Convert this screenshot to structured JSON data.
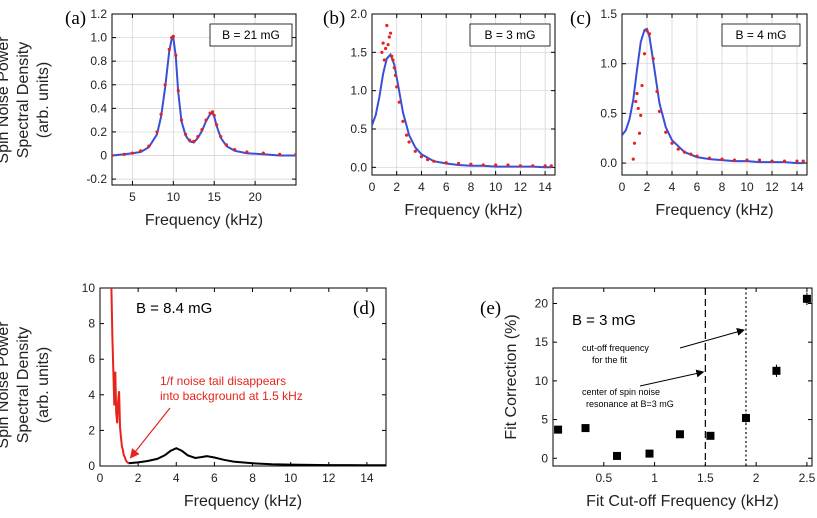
{
  "shared": {
    "ylabel_lines": [
      "Spin Noise Power",
      "Spectral Density",
      "(arb. units)"
    ],
    "xlabel": "Frequency (kHz)"
  },
  "colors": {
    "data": "#e8231c",
    "fit": "#3a4fd8",
    "trace": "#000000",
    "tail": "#e8231c",
    "grid": "#d0d0d0"
  },
  "chart_data": [
    {
      "id": "a",
      "panel_label": "(a)",
      "type": "scatter+line",
      "legend": "B = 21 mG",
      "xlabel": "Frequency (kHz)",
      "ylabel": "Spin Noise Power Spectral Density (arb. units)",
      "xlim": [
        2.5,
        25
      ],
      "ylim": [
        -0.25,
        1.2
      ],
      "xticks": [
        5,
        10,
        15,
        20
      ],
      "yticks": [
        -0.2,
        0,
        0.2,
        0.4,
        0.6,
        0.8,
        1.0,
        1.2
      ],
      "ytick_labels": [
        "-0.2",
        "0",
        "0.2",
        "0.4",
        "0.6",
        "0.8",
        "1.0",
        "1.2"
      ],
      "grid": true,
      "series": [
        {
          "kind": "data-points",
          "x": [
            2.5,
            4,
            5,
            6,
            7,
            8,
            8.5,
            9,
            9.5,
            9.8,
            10,
            10.3,
            10.6,
            11,
            11.5,
            12,
            12.5,
            13,
            13.5,
            14,
            14.5,
            14.8,
            15,
            15.3,
            15.8,
            16.5,
            17.5,
            19,
            21,
            23,
            25
          ],
          "y": [
            0.0,
            0.01,
            0.02,
            0.04,
            0.08,
            0.2,
            0.35,
            0.6,
            0.9,
            1.0,
            1.01,
            0.85,
            0.55,
            0.3,
            0.18,
            0.13,
            0.12,
            0.16,
            0.22,
            0.3,
            0.36,
            0.37,
            0.34,
            0.26,
            0.16,
            0.09,
            0.05,
            0.03,
            0.02,
            0.01,
            0.01
          ]
        },
        {
          "kind": "fit-curve",
          "x": [
            2.5,
            4,
            5,
            6,
            7,
            8,
            8.5,
            9,
            9.5,
            9.8,
            10,
            10.3,
            10.6,
            11,
            11.5,
            12,
            12.5,
            13,
            13.5,
            14,
            14.5,
            14.8,
            15,
            15.3,
            15.8,
            16.5,
            17.5,
            19,
            21,
            23,
            25
          ],
          "y": [
            0.0,
            0.01,
            0.02,
            0.03,
            0.07,
            0.18,
            0.33,
            0.58,
            0.88,
            0.99,
            1.0,
            0.84,
            0.54,
            0.29,
            0.17,
            0.12,
            0.11,
            0.15,
            0.21,
            0.29,
            0.35,
            0.36,
            0.33,
            0.25,
            0.15,
            0.08,
            0.04,
            0.02,
            0.01,
            0.0,
            0.0
          ]
        }
      ]
    },
    {
      "id": "b",
      "panel_label": "(b)",
      "type": "scatter+line",
      "legend": "B = 3 mG",
      "xlabel": "Frequency (kHz)",
      "xlim": [
        0,
        14.8
      ],
      "ylim": [
        -0.1,
        2.0
      ],
      "xticks": [
        0,
        2,
        4,
        6,
        8,
        10,
        12,
        14
      ],
      "yticks": [
        0,
        0.5,
        1.0,
        1.5,
        2.0
      ],
      "ytick_labels": [
        "0.0",
        "0.5",
        "1.0",
        "1.5",
        "2.0"
      ],
      "grid": true,
      "series": [
        {
          "kind": "data-points",
          "x": [
            0.8,
            0.9,
            1.0,
            1.1,
            1.2,
            1.3,
            1.4,
            1.5,
            1.6,
            1.7,
            1.8,
            1.9,
            2.0,
            2.2,
            2.5,
            2.8,
            3.0,
            3.5,
            4.0,
            4.5,
            5,
            6,
            7,
            8,
            9,
            10,
            11,
            12,
            13,
            14,
            14.5
          ],
          "y": [
            1.5,
            1.62,
            1.4,
            1.55,
            1.85,
            1.6,
            1.7,
            1.75,
            1.45,
            1.4,
            1.3,
            1.2,
            1.05,
            0.85,
            0.6,
            0.42,
            0.33,
            0.21,
            0.14,
            0.1,
            0.08,
            0.06,
            0.05,
            0.04,
            0.03,
            0.03,
            0.03,
            0.02,
            0.02,
            0.02,
            0.02
          ]
        },
        {
          "kind": "fit-curve",
          "x": [
            0,
            0.3,
            0.6,
            0.9,
            1.2,
            1.5,
            1.8,
            2.1,
            2.5,
            3.0,
            3.5,
            4.0,
            5,
            6,
            7,
            8,
            9,
            10,
            11,
            12,
            13,
            14,
            14.5
          ],
          "y": [
            0.55,
            0.68,
            0.92,
            1.22,
            1.42,
            1.47,
            1.34,
            1.08,
            0.72,
            0.42,
            0.26,
            0.17,
            0.08,
            0.05,
            0.03,
            0.02,
            0.02,
            0.01,
            0.01,
            0.01,
            0.01,
            0.0,
            0.0
          ]
        }
      ]
    },
    {
      "id": "c",
      "panel_label": "(c)",
      "type": "scatter+line",
      "legend": "B = 4 mG",
      "xlabel": "Frequency (kHz)",
      "xlim": [
        0,
        14.8
      ],
      "ylim": [
        -0.12,
        1.5
      ],
      "xticks": [
        0,
        2,
        4,
        6,
        8,
        10,
        12,
        14
      ],
      "yticks": [
        0,
        0.5,
        1.0,
        1.5
      ],
      "ytick_labels": [
        "0.0",
        "0.5",
        "1.0",
        "1.5"
      ],
      "grid": true,
      "series": [
        {
          "kind": "data-points",
          "x": [
            0.9,
            1.0,
            1.1,
            1.2,
            1.3,
            1.4,
            1.5,
            1.6,
            1.8,
            2.0,
            2.2,
            2.5,
            2.8,
            3.0,
            3.5,
            4.0,
            4.5,
            5,
            5.5,
            6,
            7,
            8,
            9,
            10,
            11,
            12,
            13,
            14,
            14.5
          ],
          "y": [
            0.04,
            0.2,
            0.62,
            0.7,
            0.55,
            0.3,
            0.48,
            0.78,
            1.1,
            1.33,
            1.3,
            1.05,
            0.72,
            0.52,
            0.31,
            0.2,
            0.14,
            0.11,
            0.09,
            0.07,
            0.05,
            0.04,
            0.03,
            0.03,
            0.03,
            0.02,
            0.02,
            0.02,
            0.02
          ]
        },
        {
          "kind": "fit-curve",
          "x": [
            0,
            0.3,
            0.6,
            0.9,
            1.2,
            1.5,
            1.8,
            2.0,
            2.2,
            2.5,
            3.0,
            3.5,
            4.0,
            5,
            6,
            7,
            8,
            9,
            10,
            11,
            12,
            13,
            14,
            14.5
          ],
          "y": [
            0.28,
            0.33,
            0.44,
            0.64,
            0.94,
            1.22,
            1.34,
            1.35,
            1.27,
            1.02,
            0.6,
            0.36,
            0.23,
            0.11,
            0.06,
            0.04,
            0.03,
            0.02,
            0.02,
            0.01,
            0.01,
            0.01,
            0.0,
            0.0
          ]
        }
      ]
    },
    {
      "id": "d",
      "panel_label": "(d)",
      "type": "line",
      "legend": "B = 8.4 mG",
      "xlabel": "Frequency (kHz)",
      "ylabel": "Spin Noise Power Spectral Density (arb. units)",
      "xlim": [
        0,
        15
      ],
      "ylim": [
        0,
        10
      ],
      "xticks": [
        0,
        2,
        4,
        6,
        8,
        10,
        12,
        14
      ],
      "yticks": [
        0,
        2,
        4,
        6,
        8,
        10
      ],
      "ytick_labels": [
        "0",
        "2",
        "4",
        "6",
        "8",
        "10"
      ],
      "grid": false,
      "annotation": {
        "lines": [
          "1/f noise tail disappears",
          "into background at 1.5 kHz"
        ],
        "target_x": 1.5,
        "target_y": 0.3
      },
      "series": [
        {
          "name": "",
          "kind": "tail",
          "x": [
            0.6,
            0.65,
            0.7,
            0.75,
            0.8,
            0.85,
            0.9,
            0.95,
            1.0,
            1.05,
            1.1,
            1.15,
            1.2,
            1.25,
            1.3,
            1.35,
            1.4,
            1.45,
            1.5
          ],
          "y": [
            10,
            7.2,
            5.4,
            3.4,
            5.3,
            3.0,
            2.4,
            3.6,
            4.2,
            2.2,
            1.6,
            1.1,
            0.9,
            0.6,
            0.5,
            0.35,
            0.25,
            0.2,
            0.15
          ]
        },
        {
          "name": "",
          "kind": "trace",
          "x": [
            1.5,
            2.0,
            2.5,
            3.0,
            3.4,
            3.7,
            4.0,
            4.3,
            4.6,
            5.0,
            5.3,
            5.6,
            6.0,
            6.5,
            7.0,
            8.0,
            9.0,
            10.0,
            11.0,
            12.0,
            13.0,
            14.0,
            15.0
          ],
          "y": [
            0.15,
            0.2,
            0.28,
            0.4,
            0.6,
            0.85,
            1.0,
            0.85,
            0.6,
            0.45,
            0.5,
            0.55,
            0.48,
            0.35,
            0.25,
            0.15,
            0.1,
            0.08,
            0.06,
            0.05,
            0.05,
            0.04,
            0.04
          ]
        }
      ]
    },
    {
      "id": "e",
      "panel_label": "(e)",
      "type": "scatter",
      "legend": "B = 3 mG",
      "xlabel": "Fit Cut-off Frequency (kHz)",
      "ylabel": "Fit Correction (%)",
      "xlim": [
        0,
        2.55
      ],
      "ylim": [
        -1,
        22
      ],
      "xticks": [
        0.5,
        1.0,
        1.5,
        2.0,
        2.5
      ],
      "yticks": [
        0,
        5,
        10,
        15,
        20
      ],
      "xtick_labels": [
        "0.5",
        "1",
        "1.5",
        "2",
        "2.5"
      ],
      "ytick_labels": [
        "0",
        "5",
        "10",
        "15",
        "20"
      ],
      "grid": false,
      "vlines": [
        {
          "x": 1.5,
          "style": "dashed",
          "label": [
            "cut-off frequency",
            "for the fit"
          ]
        },
        {
          "x": 1.9,
          "style": "dotted",
          "label": [
            "center of spin noise",
            "resonance at B=3 mG"
          ]
        }
      ],
      "series": [
        {
          "kind": "points-with-errorbars",
          "x": [
            0.05,
            0.32,
            0.63,
            0.95,
            1.25,
            1.55,
            1.9,
            2.2,
            2.5
          ],
          "y": [
            3.7,
            3.9,
            0.3,
            0.6,
            3.1,
            2.9,
            5.2,
            11.3,
            20.6
          ],
          "err": [
            0.4,
            0.4,
            0.3,
            0.3,
            0.4,
            0.4,
            0.6,
            0.8,
            0.8
          ]
        }
      ]
    }
  ]
}
